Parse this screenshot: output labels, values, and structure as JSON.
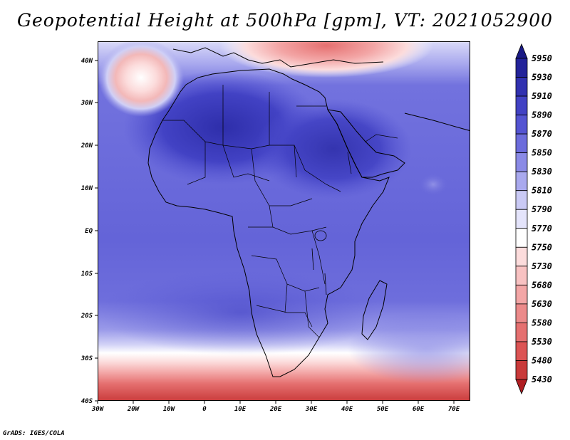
{
  "title": "Geopotential Height at 500hPa [gpm], VT: 2021052900",
  "credit": "GrADS: IGES/COLA",
  "axes": {
    "lon_labels": [
      "30W",
      "20W",
      "10W",
      "0",
      "10E",
      "20E",
      "30E",
      "40E",
      "50E",
      "60E",
      "70E"
    ],
    "lat_labels": [
      "40N",
      "30N",
      "20N",
      "10N",
      "EQ",
      "10S",
      "20S",
      "30S",
      "40S"
    ]
  },
  "chart_data": {
    "type": "heatmap",
    "title": "Geopotential Height at 500hPa [gpm], VT: 2021052900",
    "variable": "Geopotential Height",
    "level": "500hPa",
    "units": "gpm",
    "valid_time": "2021052900",
    "lon_range": [
      -30,
      75
    ],
    "lat_range": [
      -40,
      45
    ],
    "colorbar": {
      "levels": [
        "5430",
        "5480",
        "5530",
        "5580",
        "5630",
        "5680",
        "5730",
        "5750",
        "5770",
        "5790",
        "5810",
        "5830",
        "5850",
        "5870",
        "5890",
        "5910",
        "5930",
        "5950"
      ],
      "colors": [
        "#b01e22",
        "#c93a3a",
        "#dc5454",
        "#e57070",
        "#ec8a8a",
        "#f3a6a6",
        "#f8c2c2",
        "#fcdcdc",
        "#ffffff",
        "#e4e4fb",
        "#cacaf5",
        "#a9a9ee",
        "#8a8ae6",
        "#6c6cdc",
        "#5454d2",
        "#4242c4",
        "#3131b0",
        "#23239a",
        "#1a1a85"
      ]
    }
  }
}
